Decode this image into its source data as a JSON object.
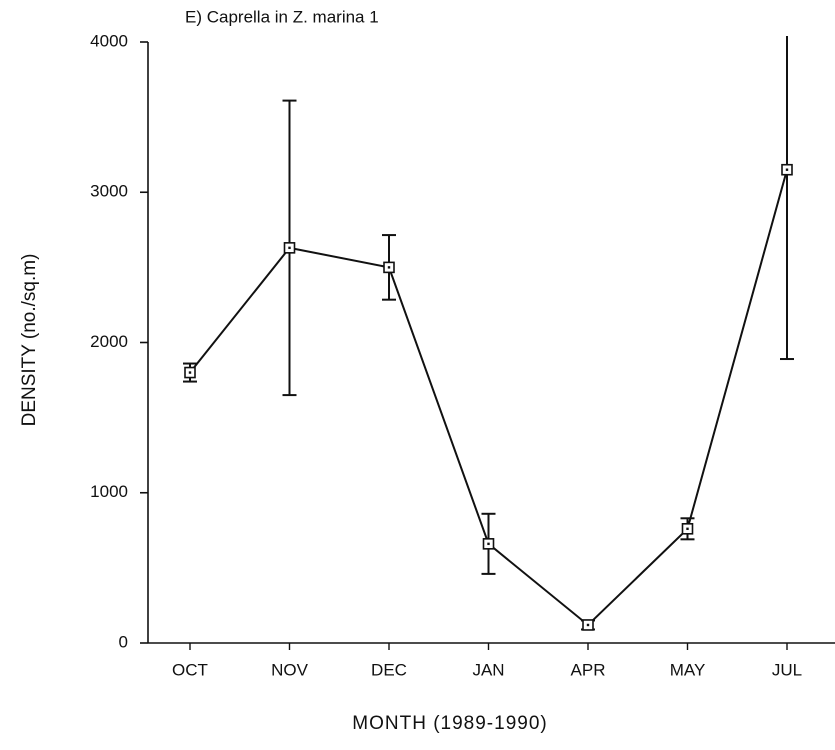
{
  "chart_data": {
    "type": "line",
    "title": "E) Caprella in Z. marina 1",
    "x_label": "MONTH   (1989-1990)",
    "y_label": "DENSITY (no./sq.m)",
    "categories": [
      "OCT",
      "NOV",
      "DEC",
      "JAN",
      "APR",
      "MAY",
      "JUL"
    ],
    "series": [
      {
        "values": [
          1800,
          2630,
          2500,
          660,
          120,
          760,
          3150
        ],
        "errors": [
          60,
          980,
          215,
          200,
          30,
          70,
          1260
        ],
        "color": "#111111"
      }
    ],
    "ylim": [
      0,
      4000
    ],
    "yticks": [
      0,
      1000,
      2000,
      3000,
      4000
    ]
  }
}
